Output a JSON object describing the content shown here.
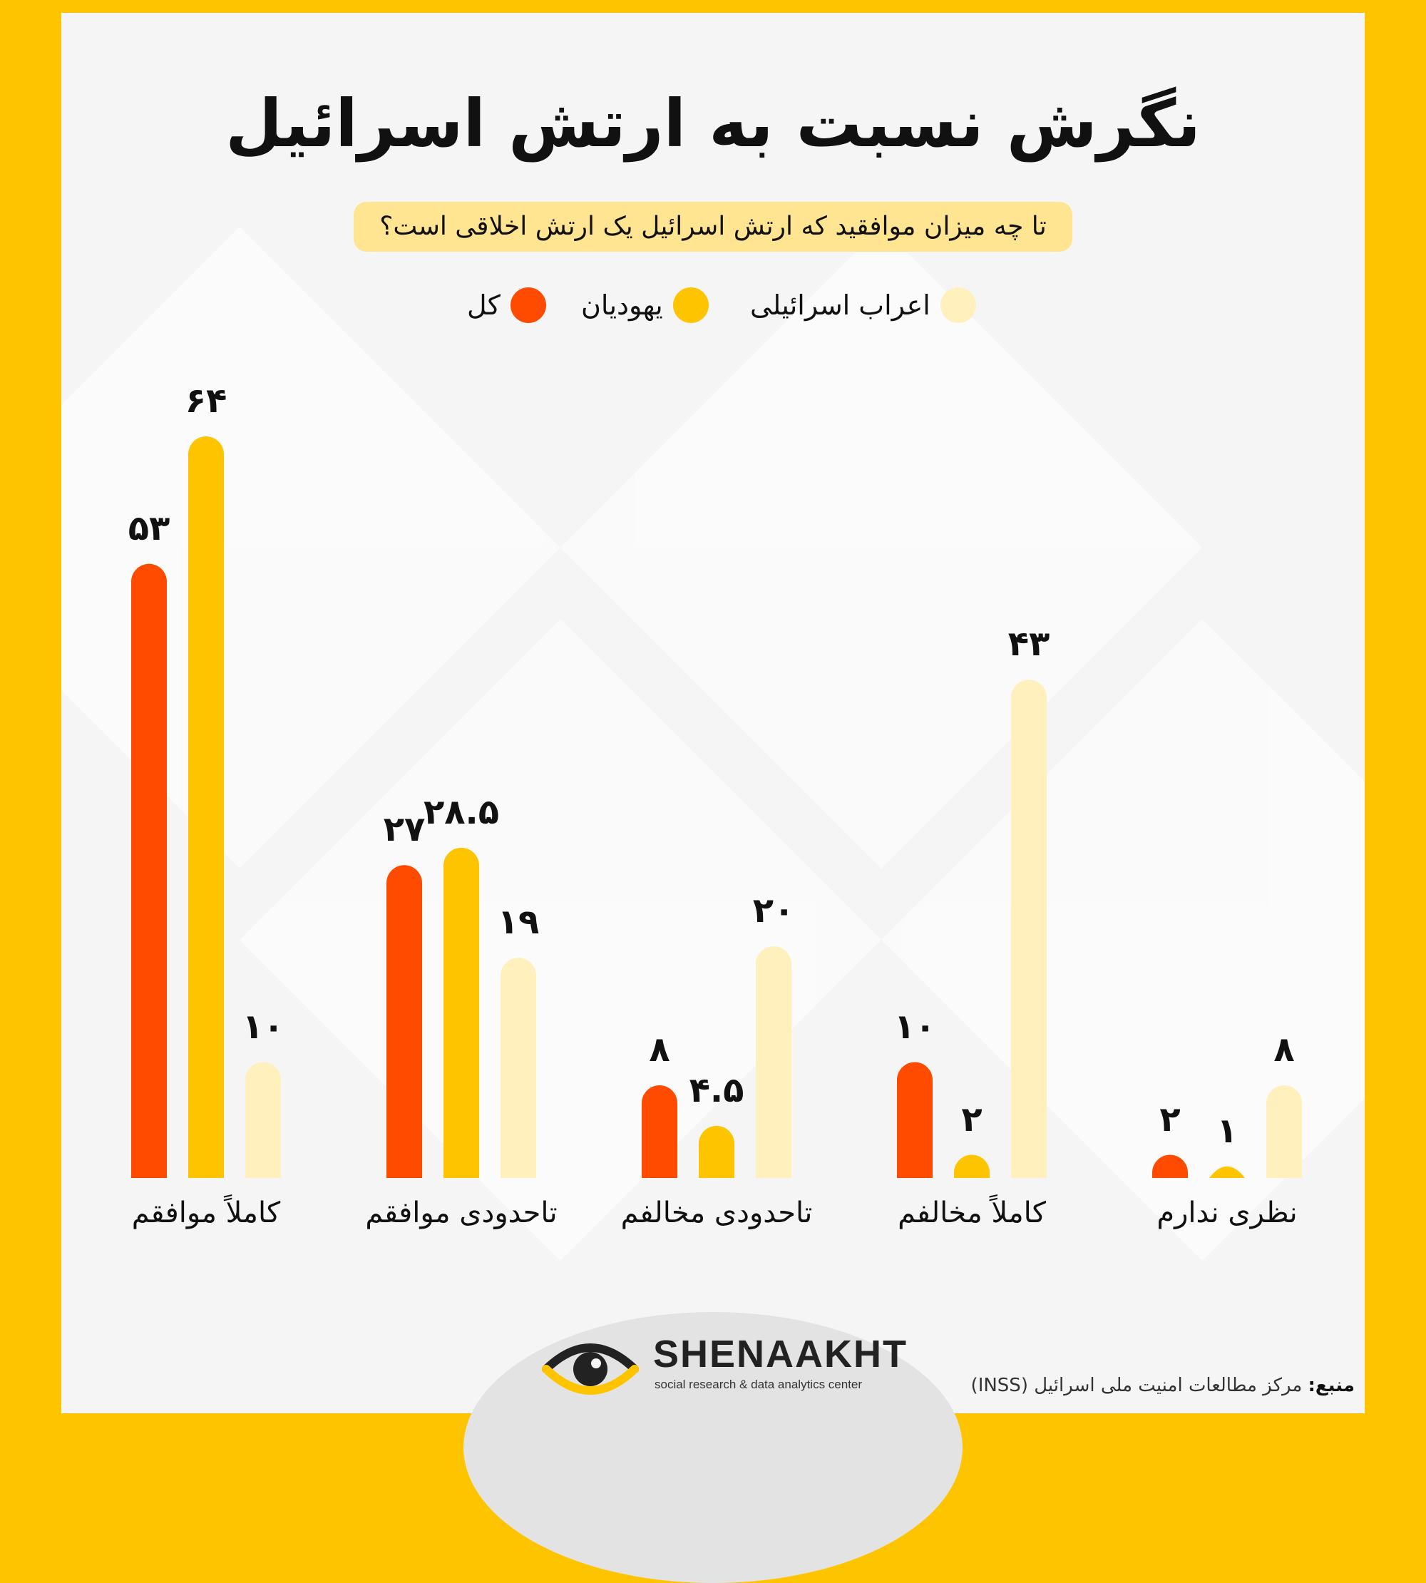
{
  "title": "نگرش نسبت به ارتش اسرائیل",
  "subtitle": "تا چه میزان موافقید که ارتش اسرائیل یک ارتش اخلاقی است؟",
  "legend": [
    {
      "label": "کل",
      "color": "#FF4B00"
    },
    {
      "label": "یهودیان",
      "color": "#FFC400"
    },
    {
      "label": "اعراب اسرائیلی",
      "color": "#FFF0BD"
    }
  ],
  "chart_data": {
    "type": "bar",
    "categories": [
      "کاملاً موافقم",
      "تاحدودی موافقم",
      "تاحدودی مخالفم",
      "کاملاً مخالفم",
      "نظری ندارم"
    ],
    "series": [
      {
        "name": "کل",
        "color": "#FF4B00",
        "values": [
          53,
          27,
          8,
          10,
          2
        ],
        "labels": [
          "۵۳",
          "۲۷",
          "۸",
          "۱۰",
          "۲"
        ]
      },
      {
        "name": "یهودیان",
        "color": "#FFC400",
        "values": [
          64,
          28.5,
          4.5,
          2,
          1
        ],
        "labels": [
          "۶۴",
          "۲۸.۵",
          "۴.۵",
          "۲",
          "۱"
        ]
      },
      {
        "name": "اعراب اسرائیلی",
        "color": "#FFF0BD",
        "values": [
          10,
          19,
          20,
          43,
          8
        ],
        "labels": [
          "۱۰",
          "۱۹",
          "۲۰",
          "۴۳",
          "۸"
        ]
      }
    ],
    "ylim": [
      0,
      64
    ],
    "grid": false,
    "legend_position": "top"
  },
  "brand": {
    "name": "SHENAAKHT",
    "tagline": "social research & data analytics center"
  },
  "source": {
    "label": "منبع:",
    "text": "مرکز مطالعات امنیت ملی اسرائیل (INSS)"
  }
}
